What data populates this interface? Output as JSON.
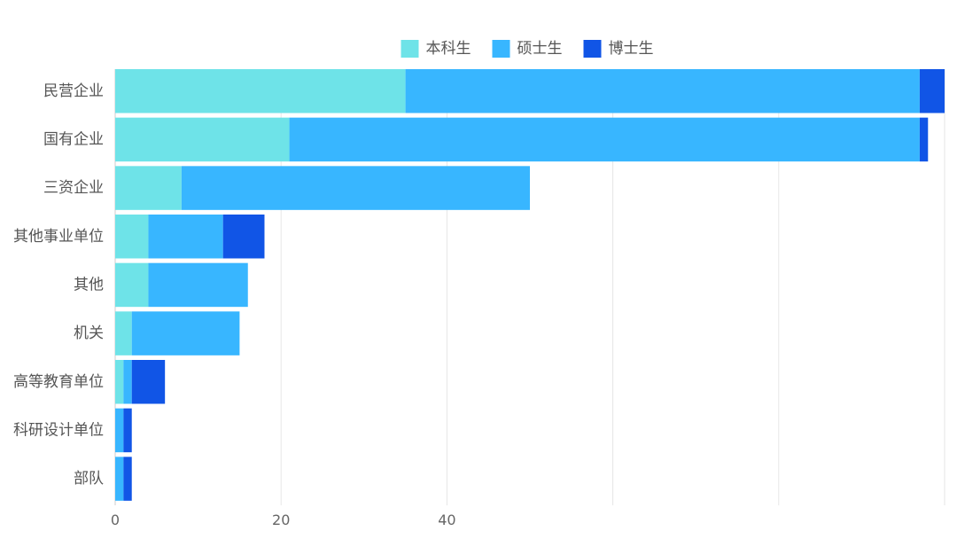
{
  "chart_data": {
    "type": "bar",
    "orientation": "horizontal",
    "stacked": true,
    "categories": [
      "民营企业",
      "国有企业",
      "三资企业",
      "其他事业单位",
      "其他",
      "机关",
      "高等教育单位",
      "科研设计单位",
      "部队"
    ],
    "series": [
      {
        "name": "本科生",
        "color": "#6ee3e8",
        "values": [
          35,
          21,
          8,
          4,
          4,
          2,
          1,
          0,
          0
        ]
      },
      {
        "name": "硕士生",
        "color": "#38b6ff",
        "values": [
          62,
          76,
          42,
          9,
          12,
          13,
          1,
          1,
          1
        ]
      },
      {
        "name": "博士生",
        "color": "#1155e6",
        "values": [
          3,
          1,
          0,
          5,
          0,
          0,
          4,
          1,
          1
        ]
      }
    ],
    "xticks": [
      "0",
      "20",
      "40"
    ],
    "xlim": [
      0,
      100
    ],
    "grid": true,
    "legend_position": "top-center"
  }
}
